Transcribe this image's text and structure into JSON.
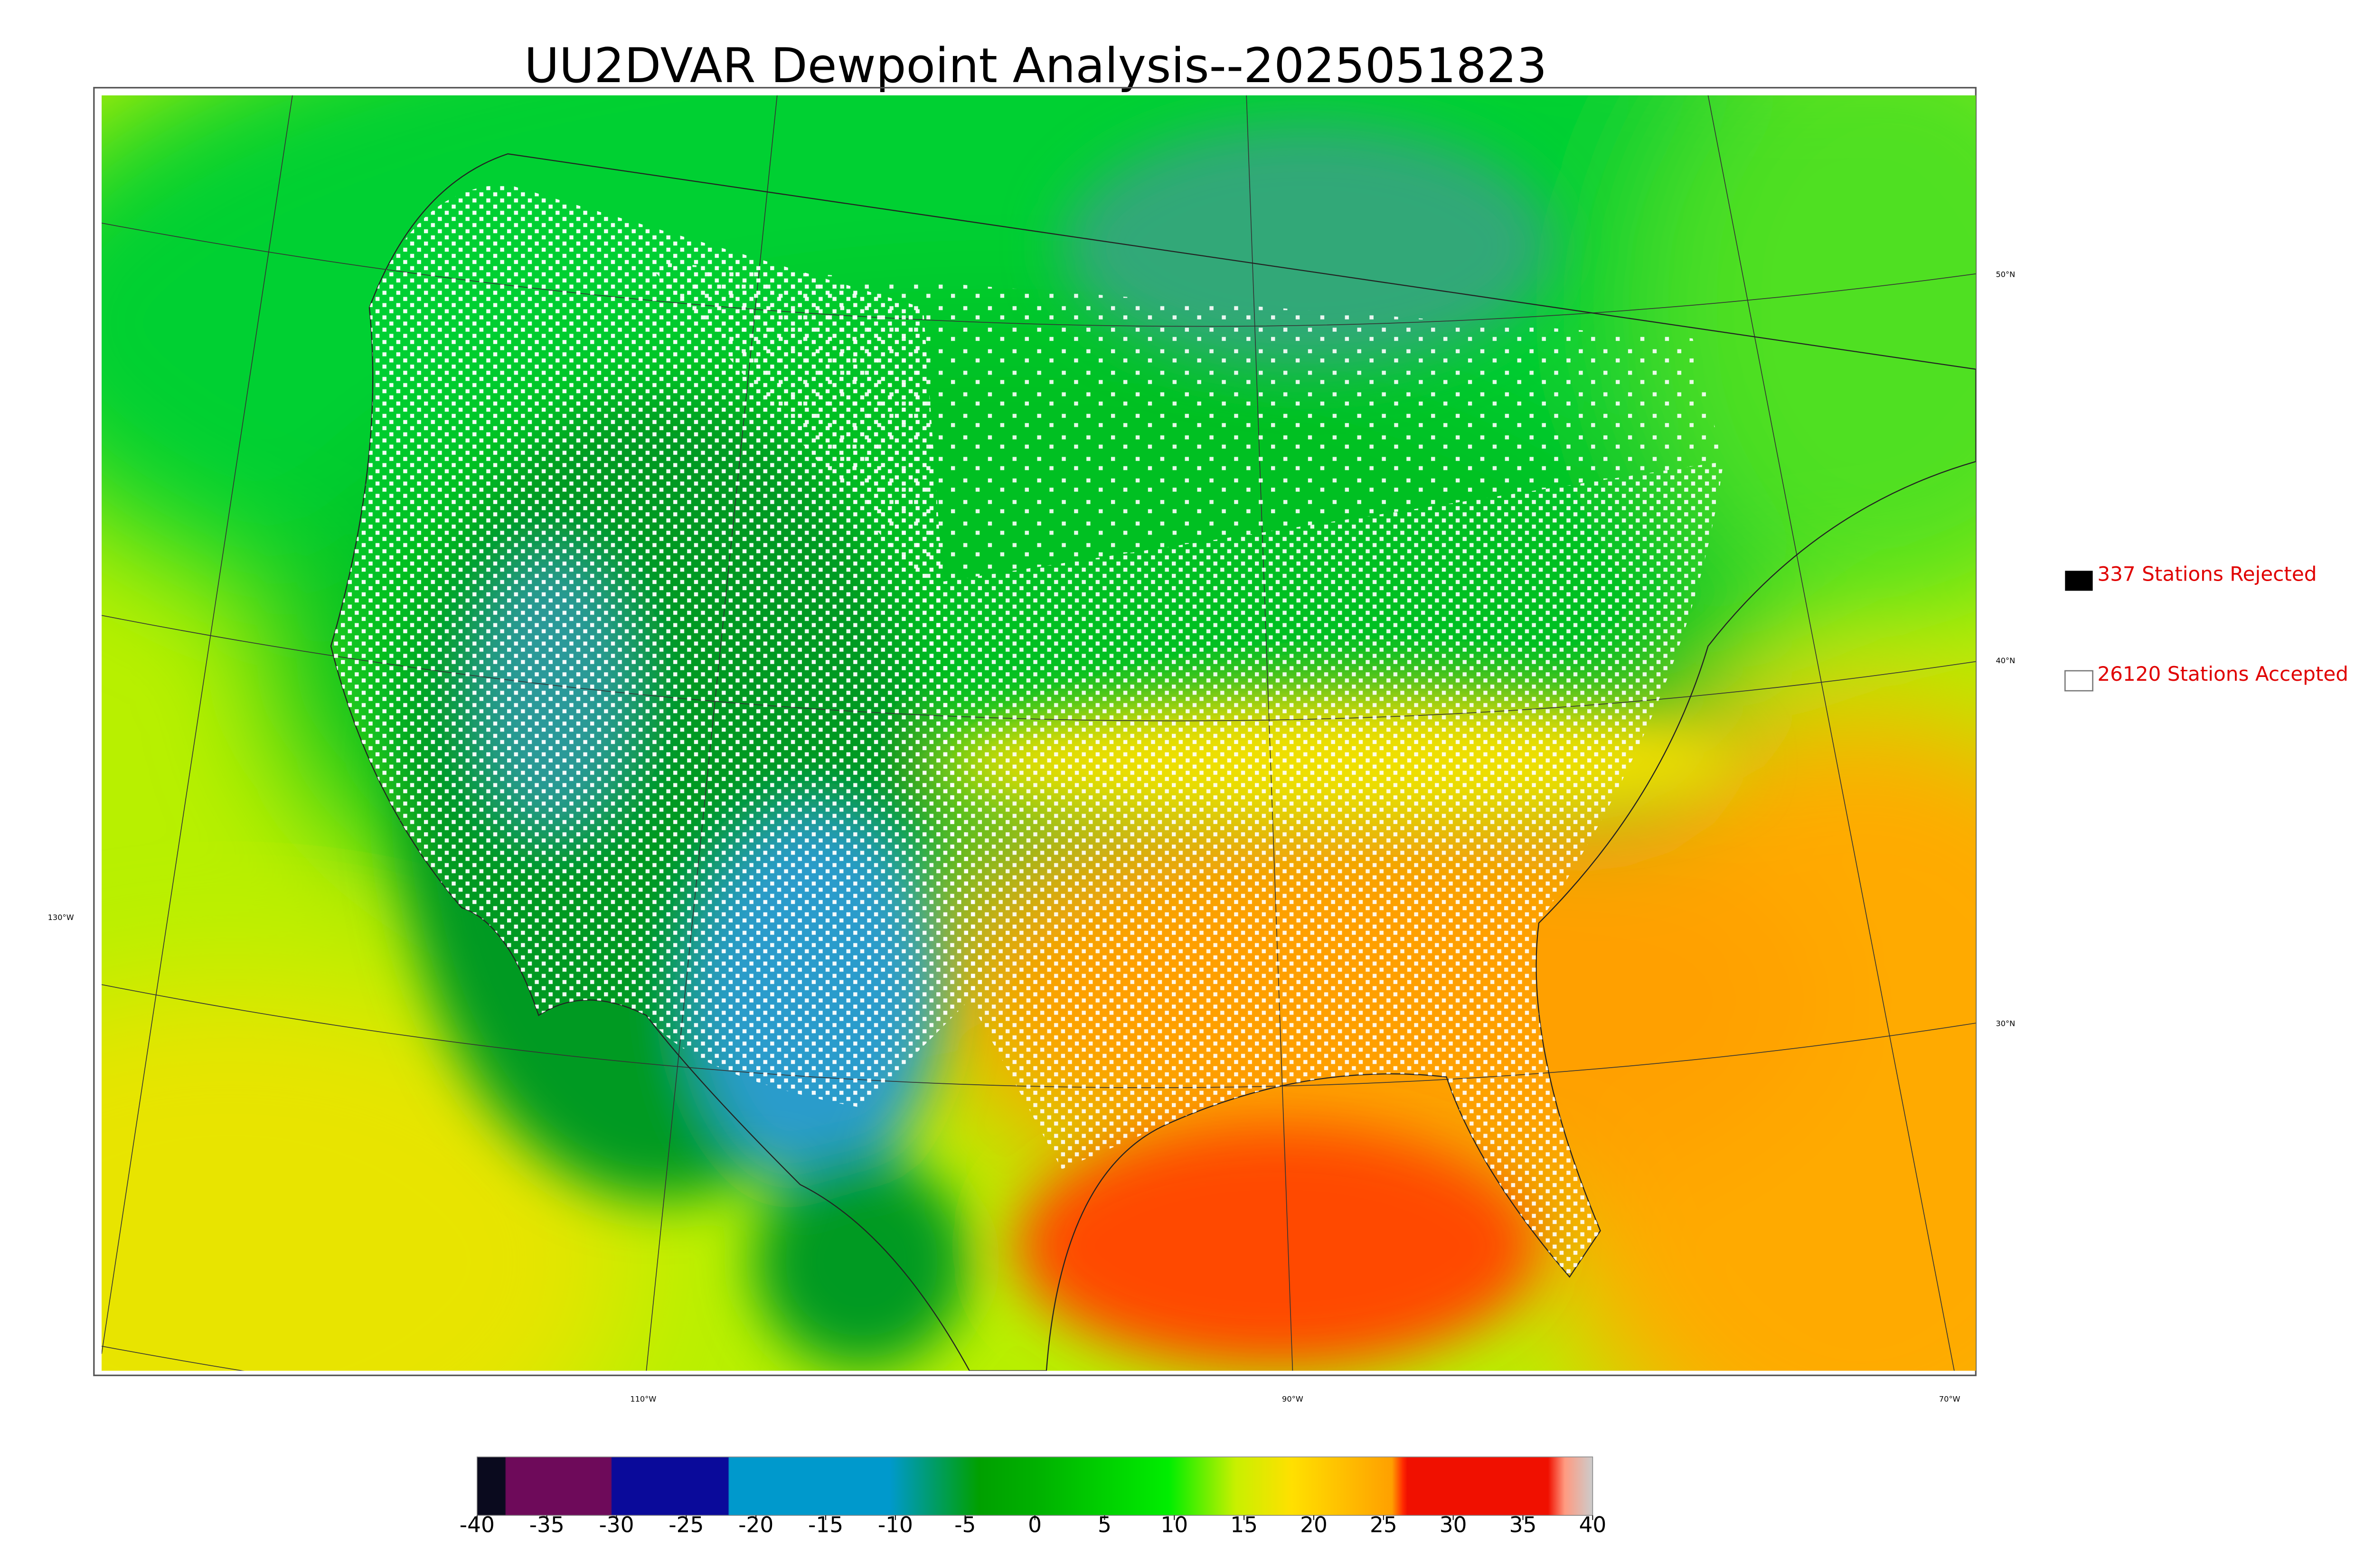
{
  "title": "UU2DVAR Dewpoint Analysis--2025051823",
  "legend": {
    "rejected": "337 Stations Rejected",
    "accepted": "26120 Stations Accepted"
  },
  "graticule": {
    "lat": [
      "50°N",
      "40°N",
      "30°N",
      "130°W"
    ],
    "lon": [
      "110°W",
      "90°W",
      "70°W"
    ]
  },
  "colorbar": {
    "lim": [
      -40,
      40
    ],
    "ticks": [
      -40,
      -35,
      -30,
      -25,
      -20,
      -15,
      -10,
      -5,
      0,
      5,
      10,
      15,
      20,
      25,
      30,
      35,
      40
    ]
  }
}
